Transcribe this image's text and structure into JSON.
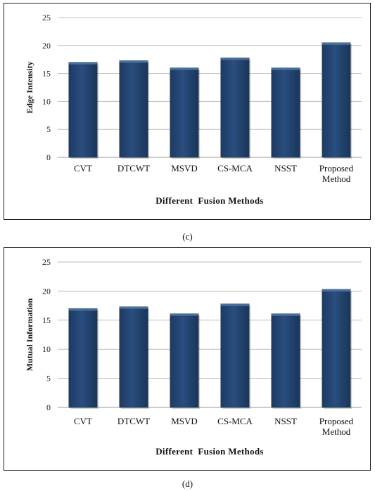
{
  "chart_data": [
    {
      "type": "bar",
      "categories": [
        "CVT",
        "DTCWT",
        "MSVD",
        "CS-MCA",
        "NSST",
        "Proposed Method"
      ],
      "values": [
        17.0,
        17.3,
        16.0,
        17.8,
        16.0,
        20.5
      ],
      "xlabel": "Different  Fusion Methods",
      "ylabel": "Edge Intensity",
      "ylim": [
        0,
        25
      ],
      "yticks": [
        0,
        5,
        10,
        15,
        20,
        25
      ],
      "grid": true,
      "caption": "(c)",
      "bar_color": "#2a4e7f"
    },
    {
      "type": "bar",
      "categories": [
        "CVT",
        "DTCWT",
        "MSVD",
        "CS-MCA",
        "NSST",
        "Proposed Method"
      ],
      "values": [
        17.0,
        17.3,
        16.1,
        17.8,
        16.1,
        20.3
      ],
      "xlabel": "Different  Fusion Methods",
      "ylabel": "Mutual Information",
      "ylim": [
        0,
        25
      ],
      "yticks": [
        0,
        5,
        10,
        15,
        20,
        25
      ],
      "grid": true,
      "caption": "(d)",
      "bar_color": "#2a4e7f"
    }
  ]
}
